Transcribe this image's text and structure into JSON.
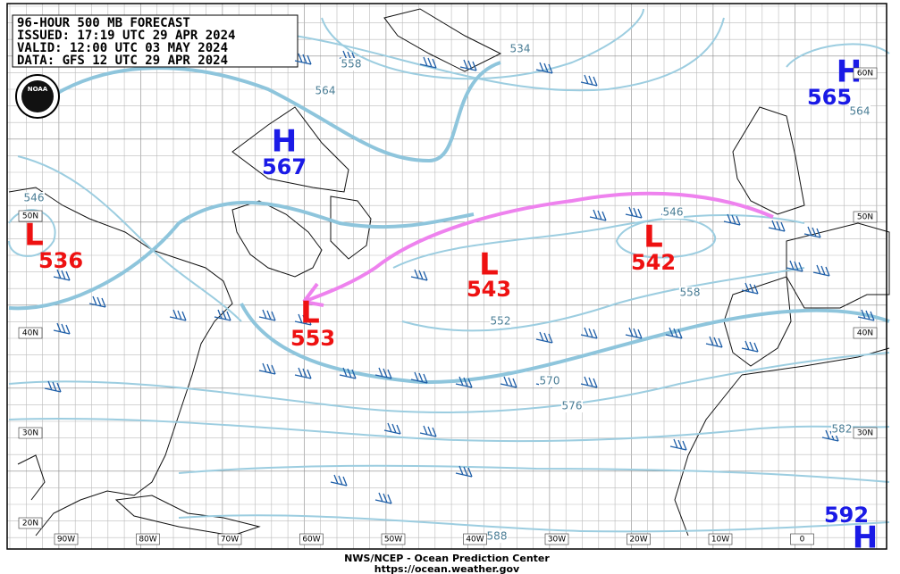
{
  "header": {
    "lines": [
      "96-HOUR 500 MB FORECAST",
      "ISSUED: 17:19 UTC 29 APR 2024",
      "VALID:  12:00 UTC 03 MAY 2024",
      "DATA:   GFS 12 UTC 29 APR 2024"
    ]
  },
  "logo": "NOAA",
  "centers": [
    {
      "type": "H",
      "value": 567
    },
    {
      "type": "L",
      "value": 536
    },
    {
      "type": "L",
      "value": 553
    },
    {
      "type": "L",
      "value": 543
    },
    {
      "type": "L",
      "value": 542
    },
    {
      "type": "H",
      "value": 565
    },
    {
      "type": "H",
      "value": 592
    }
  ],
  "contour_labels": [
    "558",
    "534",
    "564",
    "564",
    "546",
    "546",
    "552",
    "558",
    "570",
    "576",
    "582",
    "588"
  ],
  "lat_labels_left": [
    "50N",
    "40N",
    "30N",
    "20N"
  ],
  "lat_labels_right": [
    "60N",
    "50N",
    "40N",
    "30N"
  ],
  "lon_labels": [
    "90W",
    "80W",
    "70W",
    "60W",
    "50W",
    "40W",
    "30W",
    "20W",
    "10W",
    "0"
  ],
  "footer": {
    "agency": "NWS/NCEP - Ocean Prediction Center",
    "url": "https://ocean.weather.gov"
  }
}
